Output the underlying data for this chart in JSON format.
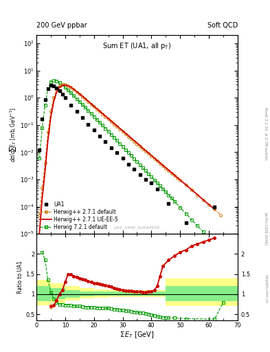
{
  "title_top_left": "200 GeV ppbar",
  "title_top_right": "Soft QCD",
  "plot_title": "Sum ET (UA1, all p_{T})",
  "xlabel": "Σ E_{T} [GeV]",
  "ylabel_main": "dσ/dsum E_{T} [mb,GeV⁻¹]",
  "ylabel_ratio": "Ratio to UA1",
  "right_label": "Rivet 3.1.10, ≥ 2.7M events",
  "ref_label": "UA1_1990_S2044935",
  "xlim": [
    0,
    70
  ],
  "ylim_main": [
    1e-05,
    200
  ],
  "ylim_ratio": [
    0.35,
    2.5
  ],
  "ratio_yticks": [
    0.5,
    1.0,
    1.5,
    2.0
  ],
  "ua1_x": [
    1,
    2,
    3,
    4,
    5,
    6,
    7,
    8,
    9,
    10,
    12,
    14,
    16,
    18,
    20,
    22,
    24,
    26,
    28,
    30,
    32,
    34,
    36,
    38,
    40,
    42,
    46,
    52,
    62
  ],
  "ua1_y": [
    0.012,
    0.17,
    0.85,
    2.2,
    2.9,
    2.7,
    2.3,
    1.8,
    1.35,
    1.0,
    0.55,
    0.32,
    0.185,
    0.108,
    0.065,
    0.04,
    0.024,
    0.015,
    0.0095,
    0.006,
    0.0037,
    0.0024,
    0.0015,
    0.001,
    0.00075,
    0.00045,
    0.00013,
    2.5e-05,
    0.0001
  ],
  "herwig_default_x": [
    1,
    2,
    3,
    4,
    5,
    6,
    7,
    8,
    9,
    10,
    11,
    12,
    13,
    14,
    15,
    16,
    17,
    18,
    19,
    20,
    21,
    22,
    23,
    24,
    25,
    26,
    27,
    28,
    29,
    30,
    31,
    32,
    33,
    34,
    35,
    36,
    37,
    38,
    39,
    40,
    41,
    42,
    43,
    44,
    45,
    46,
    47,
    48,
    49,
    50,
    52,
    54,
    56,
    58,
    60,
    62,
    64
  ],
  "herwig_default_y": [
    5e-05,
    0.0005,
    0.004,
    0.055,
    0.32,
    1.0,
    1.9,
    2.7,
    3.0,
    3.0,
    2.8,
    2.4,
    2.0,
    1.65,
    1.35,
    1.1,
    0.89,
    0.72,
    0.58,
    0.47,
    0.38,
    0.31,
    0.25,
    0.2,
    0.163,
    0.132,
    0.107,
    0.087,
    0.071,
    0.058,
    0.047,
    0.038,
    0.031,
    0.025,
    0.02,
    0.016,
    0.013,
    0.011,
    0.009,
    0.0072,
    0.0059,
    0.0048,
    0.0039,
    0.0032,
    0.0026,
    0.0021,
    0.0017,
    0.0014,
    0.00115,
    0.00094,
    0.00062,
    0.00041,
    0.00027,
    0.00018,
    0.00012,
    8e-05,
    5e-05
  ],
  "herwig_ueee5_x": [
    1,
    2,
    3,
    4,
    5,
    6,
    7,
    8,
    9,
    10,
    11,
    12,
    13,
    14,
    15,
    16,
    17,
    18,
    19,
    20,
    21,
    22,
    23,
    24,
    25,
    26,
    27,
    28,
    29,
    30,
    31,
    32,
    33,
    34,
    35,
    36,
    37,
    38,
    39,
    40,
    41,
    42,
    43,
    44,
    45,
    46,
    47,
    48,
    49,
    50,
    52,
    54,
    56,
    58,
    60,
    62
  ],
  "herwig_ueee5_y": [
    1e-05,
    0.0002,
    0.002,
    0.028,
    0.2,
    0.72,
    1.6,
    2.4,
    2.85,
    2.95,
    2.8,
    2.45,
    2.05,
    1.7,
    1.4,
    1.15,
    0.93,
    0.75,
    0.61,
    0.49,
    0.4,
    0.325,
    0.265,
    0.215,
    0.175,
    0.142,
    0.115,
    0.094,
    0.076,
    0.062,
    0.05,
    0.041,
    0.033,
    0.027,
    0.022,
    0.018,
    0.014,
    0.0115,
    0.0094,
    0.0076,
    0.0062,
    0.005,
    0.0041,
    0.0033,
    0.0027,
    0.0022,
    0.0018,
    0.00145,
    0.00118,
    0.00096,
    0.00064,
    0.00042,
    0.00028,
    0.00018,
    0.00012,
    8e-05
  ],
  "herwig721_x": [
    1,
    2,
    3,
    4,
    5,
    6,
    7,
    8,
    9,
    10,
    11,
    12,
    13,
    14,
    15,
    16,
    17,
    18,
    19,
    20,
    21,
    22,
    23,
    24,
    25,
    26,
    27,
    28,
    29,
    30,
    31,
    32,
    33,
    34,
    35,
    36,
    37,
    38,
    39,
    40,
    41,
    42,
    43,
    44,
    45,
    46,
    47,
    48,
    50,
    52,
    54,
    56,
    58,
    60,
    62,
    64,
    66
  ],
  "herwig721_y": [
    0.006,
    0.08,
    0.55,
    2.2,
    3.8,
    4.3,
    4.1,
    3.6,
    3.0,
    2.4,
    1.9,
    1.5,
    1.18,
    0.92,
    0.72,
    0.56,
    0.44,
    0.34,
    0.265,
    0.205,
    0.16,
    0.124,
    0.097,
    0.075,
    0.058,
    0.045,
    0.035,
    0.027,
    0.021,
    0.016,
    0.0125,
    0.0097,
    0.0075,
    0.0058,
    0.0045,
    0.0035,
    0.0027,
    0.0021,
    0.0016,
    0.00125,
    0.00097,
    0.00075,
    0.00058,
    0.00045,
    0.00035,
    0.00027,
    0.00021,
    0.00016,
    9.5e-05,
    5.6e-05,
    3.3e-05,
    2e-05,
    1.2e-05,
    7e-06,
    4.2e-06,
    2.5e-06,
    1.5e-06
  ],
  "ratio_ueee5_x": [
    5,
    6,
    7,
    8,
    9,
    10,
    11,
    12,
    13,
    14,
    15,
    16,
    17,
    18,
    19,
    20,
    21,
    22,
    23,
    24,
    25,
    26,
    27,
    28,
    29,
    30,
    31,
    32,
    33,
    34,
    35,
    36,
    37,
    38,
    39,
    40,
    41,
    42,
    43,
    44,
    46,
    48,
    50,
    52,
    54,
    56,
    58,
    60,
    62
  ],
  "ratio_ueee5_y": [
    0.7,
    0.72,
    0.85,
    1.0,
    1.1,
    1.3,
    1.5,
    1.5,
    1.45,
    1.43,
    1.4,
    1.38,
    1.35,
    1.32,
    1.3,
    1.28,
    1.27,
    1.25,
    1.23,
    1.22,
    1.2,
    1.18,
    1.15,
    1.13,
    1.12,
    1.1,
    1.09,
    1.09,
    1.08,
    1.07,
    1.07,
    1.06,
    1.05,
    1.05,
    1.06,
    1.07,
    1.1,
    1.2,
    1.45,
    1.7,
    1.85,
    1.95,
    2.05,
    2.1,
    2.2,
    2.25,
    2.3,
    2.35,
    2.4
  ],
  "ratio_default_x": [
    5,
    6,
    7,
    8,
    9,
    10,
    11,
    12,
    13,
    14,
    15,
    16,
    17,
    18,
    19,
    20,
    21,
    22,
    23,
    24,
    25,
    26,
    27,
    28,
    29,
    30,
    31,
    32,
    33,
    34,
    35,
    36,
    37,
    38,
    39,
    40,
    41,
    42,
    43,
    44,
    46,
    48,
    50,
    52,
    54,
    56,
    58,
    60,
    62
  ],
  "ratio_default_y": [
    0.67,
    0.72,
    0.85,
    1.0,
    1.1,
    1.3,
    1.5,
    1.5,
    1.45,
    1.43,
    1.4,
    1.38,
    1.35,
    1.32,
    1.3,
    1.28,
    1.27,
    1.25,
    1.23,
    1.22,
    1.2,
    1.18,
    1.15,
    1.13,
    1.12,
    1.1,
    1.09,
    1.09,
    1.08,
    1.07,
    1.07,
    1.06,
    1.05,
    1.05,
    1.06,
    1.07,
    1.1,
    1.2,
    1.45,
    1.7,
    1.85,
    1.95,
    2.05,
    2.1,
    2.2,
    2.25,
    2.3,
    2.35,
    2.4
  ],
  "ratio_721_x": [
    2,
    3,
    4,
    5,
    6,
    7,
    8,
    9,
    10,
    11,
    12,
    13,
    14,
    15,
    16,
    17,
    18,
    19,
    20,
    21,
    22,
    23,
    24,
    25,
    26,
    27,
    28,
    29,
    30,
    31,
    32,
    33,
    34,
    35,
    36,
    37,
    38,
    39,
    40,
    41,
    42,
    43,
    44,
    45,
    46,
    48,
    52,
    62,
    65
  ],
  "ratio_721_y": [
    2.05,
    1.85,
    1.35,
    1.05,
    0.88,
    0.79,
    0.75,
    0.74,
    0.73,
    0.73,
    0.72,
    0.71,
    0.7,
    0.7,
    0.69,
    0.68,
    0.68,
    0.67,
    0.67,
    0.66,
    0.66,
    0.65,
    0.65,
    0.65,
    0.64,
    0.63,
    0.62,
    0.61,
    0.6,
    0.59,
    0.58,
    0.57,
    0.56,
    0.55,
    0.54,
    0.53,
    0.52,
    0.5,
    0.49,
    0.47,
    0.45,
    0.43,
    0.42,
    0.42,
    0.41,
    0.41,
    0.39,
    0.38,
    0.8
  ],
  "band_x_edges": [
    0,
    5,
    10,
    15,
    20,
    25,
    30,
    35,
    40,
    45,
    50,
    55,
    60,
    65,
    70
  ],
  "band_yellow_lo": [
    0.72,
    0.78,
    0.85,
    0.9,
    0.92,
    0.93,
    0.93,
    0.93,
    0.93,
    0.7,
    0.7,
    0.7,
    0.7,
    0.7
  ],
  "band_yellow_hi": [
    1.35,
    1.28,
    1.2,
    1.15,
    1.12,
    1.1,
    1.1,
    1.1,
    1.1,
    1.4,
    1.4,
    1.4,
    1.4,
    1.4
  ],
  "band_green_lo": [
    0.82,
    0.88,
    0.92,
    0.95,
    0.96,
    0.96,
    0.96,
    0.96,
    0.96,
    0.82,
    0.82,
    0.82,
    0.82,
    0.82
  ],
  "band_green_hi": [
    1.2,
    1.15,
    1.1,
    1.07,
    1.06,
    1.06,
    1.06,
    1.06,
    1.06,
    1.2,
    1.2,
    1.2,
    1.2,
    1.2
  ],
  "color_ua1": "#000000",
  "color_herwig_default": "#cc7700",
  "color_herwig_ueee5": "#cc0000",
  "color_herwig721": "#009900",
  "color_yellow_band": "#ffff88",
  "color_green_band": "#88ee88"
}
